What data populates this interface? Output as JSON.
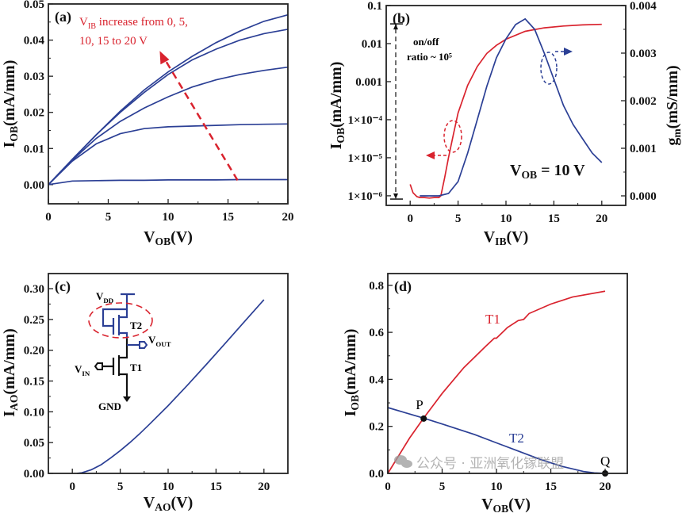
{
  "colors": {
    "blue": "#2b3f95",
    "red": "#d9232e",
    "axis": "#222222",
    "watermark": "#9a9a9a"
  },
  "watermark": "公众号 · 亚洲氧化镓联盟",
  "chart_data": [
    {
      "panel": "a",
      "type": "line",
      "label": "(a)",
      "xlabel": {
        "main": "V",
        "sub": "OB",
        "tail": "(V)"
      },
      "ylabel": {
        "main": "I",
        "sub": "OB",
        "tail": "(mA/mm)"
      },
      "xlim": [
        0,
        20
      ],
      "ylim": [
        -0.0053,
        0.05
      ],
      "xticks": [
        0,
        5,
        10,
        15,
        20
      ],
      "xtick_labels": [
        "0",
        "5",
        "10",
        "15",
        "20"
      ],
      "yticks": [
        0,
        0.01,
        0.02,
        0.03,
        0.04,
        0.05
      ],
      "ytick_labels": [
        "0.00",
        "0.01",
        "0.02",
        "0.03",
        "0.04",
        "0.05"
      ],
      "x": [
        0,
        2,
        4,
        6,
        8,
        10,
        12,
        14,
        16,
        18,
        20
      ],
      "series": [
        {
          "name": "V_IB = 0 V",
          "values": [
            0,
            0.001,
            0.0011,
            0.0012,
            0.0012,
            0.0013,
            0.0013,
            0.0013,
            0.0014,
            0.0014,
            0.0014
          ]
        },
        {
          "name": "V_IB = 5 V",
          "values": [
            0,
            0.0065,
            0.0113,
            0.0141,
            0.0155,
            0.016,
            0.0162,
            0.0164,
            0.0166,
            0.0167,
            0.0168
          ]
        },
        {
          "name": "V_IB = 10 V",
          "values": [
            0,
            0.0068,
            0.0128,
            0.0175,
            0.0212,
            0.0243,
            0.027,
            0.029,
            0.0305,
            0.0316,
            0.0325
          ]
        },
        {
          "name": "V_IB = 15 V",
          "values": [
            0,
            0.007,
            0.0138,
            0.02,
            0.0255,
            0.0305,
            0.0345,
            0.0375,
            0.04,
            0.0418,
            0.043
          ]
        },
        {
          "name": "V_IB = 20 V",
          "values": [
            0,
            0.007,
            0.0138,
            0.0203,
            0.0262,
            0.0312,
            0.0355,
            0.0393,
            0.0425,
            0.0452,
            0.047
          ]
        }
      ],
      "annotation": {
        "main": "V",
        "sub": "IB",
        "tail": " increase from 0, 5,",
        "line2": "10, 15 to 20 V",
        "arrow_from": [
          15.8,
          0.0012
        ],
        "arrow_to": [
          9.3,
          0.037
        ]
      }
    },
    {
      "panel": "b",
      "type": "line",
      "label": "(b)",
      "xlabel": {
        "main": "V",
        "sub": "IB",
        "tail": "(V)"
      },
      "ylabel": {
        "main": "I",
        "sub": "OB",
        "tail": "(mA/mm)"
      },
      "y2label": {
        "main": "g",
        "sub": "m",
        "tail": "(mS/mm)"
      },
      "xlim": [
        -2.5,
        22.5
      ],
      "ylim": [
        5.6e-07,
        0.1
      ],
      "yscale": "log",
      "y2lim": [
        -0.0002,
        0.004
      ],
      "xticks": [
        0,
        5,
        10,
        15,
        20
      ],
      "xtick_labels": [
        "0",
        "5",
        "10",
        "15",
        "20"
      ],
      "yticks": [
        0.1,
        0.01,
        0.001,
        0.0001,
        1e-05,
        1e-06
      ],
      "ytick_labels": [
        "0.1",
        "0.01",
        "0.001",
        "1×10⁻⁴",
        "1×10⁻⁵",
        "1×10⁻⁶"
      ],
      "y2ticks": [
        0,
        0.001,
        0.002,
        0.003,
        0.004
      ],
      "y2tick_labels": [
        "0.000",
        "0.001",
        "0.002",
        "0.003",
        "0.004"
      ],
      "series": [
        {
          "name": "I_OB",
          "axis": "left",
          "x": [
            0,
            0.3,
            0.7,
            1,
            1.5,
            2,
            2.5,
            3,
            3.2,
            3.6,
            4,
            4.5,
            5,
            6,
            7,
            8,
            9,
            10,
            12,
            14,
            16,
            18,
            20
          ],
          "values": [
            2e-06,
            1.2e-06,
            9.5e-07,
            9e-07,
            9e-07,
            8.7e-07,
            9e-07,
            9e-07,
            1e-06,
            3e-06,
            1e-05,
            4e-05,
            0.00015,
            0.0008,
            0.0025,
            0.0055,
            0.009,
            0.013,
            0.021,
            0.026,
            0.029,
            0.031,
            0.032
          ]
        },
        {
          "name": "g_m",
          "axis": "right",
          "x": [
            1,
            2,
            3,
            4,
            5,
            6,
            7,
            8,
            9,
            10,
            11,
            12,
            13,
            14,
            15,
            16,
            17,
            18,
            19,
            20
          ],
          "values": [
            0,
            0,
            0,
            5e-05,
            0.0003,
            0.0009,
            0.0016,
            0.0023,
            0.0029,
            0.0033,
            0.0036,
            0.00372,
            0.0035,
            0.003,
            0.00245,
            0.0019,
            0.0015,
            0.0012,
            0.0009,
            0.0007
          ]
        }
      ],
      "annotations": {
        "onoff_line1": "on/off",
        "onoff_line2": "ratio ~ 10⁵",
        "vob_main": "V",
        "vob_sub": "OB",
        "vob_tail": " = 10 V",
        "onoff_range": [
          0.033,
          8.2e-07
        ]
      }
    },
    {
      "panel": "c",
      "type": "line",
      "label": "(c)",
      "xlabel": {
        "main": "V",
        "sub": "AO",
        "tail": "(V)"
      },
      "ylabel": {
        "main": "I",
        "sub": "AO",
        "tail": "(mA/mm)"
      },
      "xlim": [
        -2.5,
        22.5
      ],
      "ylim": [
        0,
        0.3245
      ],
      "xticks": [
        0,
        5,
        10,
        15,
        20
      ],
      "xtick_labels": [
        "0",
        "5",
        "10",
        "15",
        "20"
      ],
      "yticks": [
        0,
        0.05,
        0.1,
        0.15,
        0.2,
        0.25,
        0.3
      ],
      "ytick_labels": [
        "0.00",
        "0.05",
        "0.10",
        "0.15",
        "0.20",
        "0.25",
        "0.30"
      ],
      "series": [
        {
          "name": "I_AO",
          "x": [
            0.5,
            1,
            2,
            3,
            4,
            5,
            6,
            7,
            8,
            10,
            12,
            14,
            16,
            18,
            20
          ],
          "values": [
            0,
            0.001,
            0.006,
            0.014,
            0.025,
            0.037,
            0.05,
            0.064,
            0.079,
            0.11,
            0.143,
            0.177,
            0.212,
            0.247,
            0.282
          ]
        }
      ],
      "inset": {
        "vdd_main": "V",
        "vdd_sub": "DD",
        "t2": "T2",
        "vout_main": "V",
        "vout_sub": "OUT",
        "vin_main": "V",
        "vin_sub": "IN",
        "t1": "T1",
        "gnd": "GND"
      }
    },
    {
      "panel": "d",
      "type": "line",
      "label": "(d)",
      "xlabel": {
        "main": "V",
        "sub": "OB",
        "tail": "(V)"
      },
      "ylabel": {
        "main": "I",
        "sub": "OB",
        "tail": "(mA/mm)"
      },
      "xlim": [
        0,
        22.04
      ],
      "ylim": [
        0,
        0.85
      ],
      "xticks": [
        0,
        5,
        10,
        15,
        20
      ],
      "xtick_labels": [
        "0",
        "5",
        "10",
        "15",
        "20"
      ],
      "yticks": [
        0,
        0.2,
        0.4,
        0.6,
        0.8
      ],
      "ytick_labels": [
        "0.0",
        "0.2",
        "0.4",
        "0.6",
        "0.8"
      ],
      "series": [
        {
          "name": "T1",
          "x": [
            0,
            2,
            3.3,
            5,
            7,
            9,
            9.8,
            10,
            11,
            12,
            12.5,
            13,
            15,
            17,
            20
          ],
          "values": [
            0,
            0.15,
            0.235,
            0.34,
            0.45,
            0.54,
            0.575,
            0.575,
            0.62,
            0.65,
            0.655,
            0.68,
            0.72,
            0.75,
            0.775
          ]
        },
        {
          "name": "T2",
          "x": [
            0,
            3.3,
            5,
            8,
            10,
            12,
            14,
            16,
            18,
            19,
            20
          ],
          "values": [
            0.28,
            0.235,
            0.21,
            0.165,
            0.13,
            0.095,
            0.06,
            0.03,
            0.008,
            0.002,
            0
          ]
        }
      ],
      "points": [
        {
          "name": "P",
          "x": 3.3,
          "y": 0.233
        },
        {
          "name": "Q",
          "x": 20,
          "y": 0
        }
      ]
    }
  ]
}
